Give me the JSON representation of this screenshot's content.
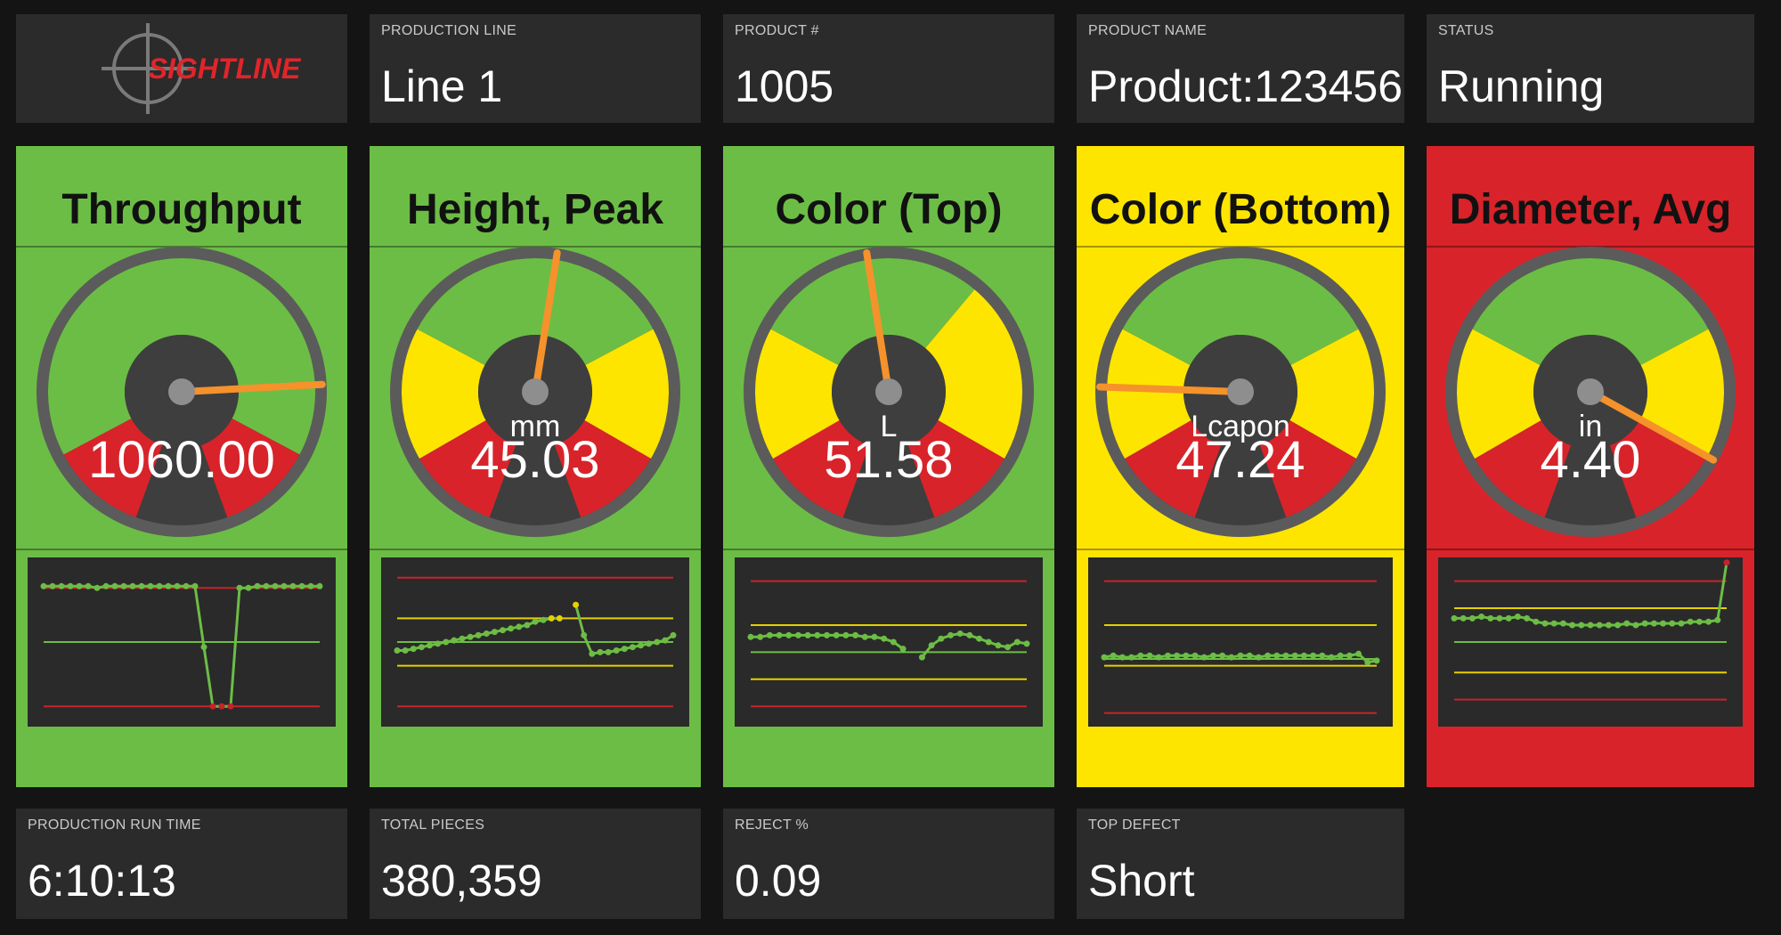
{
  "brand": {
    "logo_text": "SIGHTLINE"
  },
  "header": {
    "production_line": {
      "label": "PRODUCTION LINE",
      "value": "Line 1"
    },
    "product_number": {
      "label": "PRODUCT #",
      "value": "1005"
    },
    "product_name": {
      "label": "PRODUCT NAME",
      "value": "Product:123456"
    },
    "status": {
      "label": "STATUS",
      "value": "Running"
    }
  },
  "colors": {
    "green": "#6cbd45",
    "yellow": "#fde500",
    "red": "#d8232a",
    "needle": "#f5922b",
    "tile": "#2b2b2b",
    "background": "#141414"
  },
  "gauges": [
    {
      "title": "Throughput",
      "unit": "",
      "value": "1060.00",
      "status": "green",
      "zones": [
        [
          "red",
          200,
          242
        ],
        [
          "green",
          242,
          478
        ],
        [
          "red",
          478,
          520
        ]
      ],
      "needle_angle": 447,
      "trend": {
        "lines": [
          [
            "red",
            0.18
          ],
          [
            "green",
            0.5
          ],
          [
            "red",
            0.88
          ]
        ],
        "points": [
          0.17,
          0.17,
          0.17,
          0.17,
          0.17,
          0.17,
          0.18,
          0.17,
          0.17,
          0.17,
          0.17,
          0.17,
          0.17,
          0.17,
          0.17,
          0.17,
          0.17,
          0.17,
          0.53,
          0.88,
          0.88,
          0.88,
          0.18,
          0.18,
          0.17,
          0.17,
          0.17,
          0.17,
          0.17,
          0.17,
          0.17,
          0.17
        ],
        "flags": {
          "18": "green",
          "19": "red",
          "20": "red",
          "21": "red"
        }
      }
    },
    {
      "title": "Height, Peak",
      "unit": "mm",
      "value": "45.03",
      "status": "green",
      "zones": [
        [
          "red",
          200,
          240
        ],
        [
          "yellow",
          240,
          298
        ],
        [
          "green",
          298,
          422
        ],
        [
          "yellow",
          422,
          480
        ],
        [
          "red",
          480,
          520
        ]
      ],
      "needle_angle": 369,
      "trend": {
        "lines": [
          [
            "red",
            0.12
          ],
          [
            "yellow",
            0.36
          ],
          [
            "green",
            0.5
          ],
          [
            "yellow",
            0.64
          ],
          [
            "red",
            0.88
          ]
        ],
        "points": [
          0.55,
          0.55,
          0.54,
          0.53,
          0.52,
          0.51,
          0.5,
          0.49,
          0.48,
          0.47,
          0.46,
          0.45,
          0.44,
          0.43,
          0.42,
          0.41,
          0.4,
          0.38,
          0.37,
          0.36,
          0.36,
          null,
          0.28,
          0.46,
          0.57,
          0.56,
          0.56,
          0.55,
          0.54,
          0.53,
          0.52,
          0.51,
          0.5,
          0.49,
          0.46
        ],
        "flags": {
          "19": "yellow",
          "20": "yellow",
          "22": "yellow"
        }
      }
    },
    {
      "title": "Color (Top)",
      "unit": "L",
      "value": "51.58",
      "status": "green",
      "zones": [
        [
          "red",
          200,
          240
        ],
        [
          "yellow",
          240,
          298
        ],
        [
          "green",
          298,
          400
        ],
        [
          "yellow",
          400,
          480
        ],
        [
          "red",
          480,
          520
        ]
      ],
      "needle_angle": 351,
      "trend": {
        "lines": [
          [
            "red",
            0.14
          ],
          [
            "yellow",
            0.4
          ],
          [
            "green",
            0.56
          ],
          [
            "yellow",
            0.72
          ],
          [
            "red",
            0.88
          ]
        ],
        "points": [
          0.47,
          0.47,
          0.46,
          0.46,
          0.46,
          0.46,
          0.46,
          0.46,
          0.46,
          0.46,
          0.46,
          0.46,
          0.47,
          0.47,
          0.48,
          0.5,
          0.54,
          null,
          0.59,
          0.52,
          0.48,
          0.46,
          0.45,
          0.46,
          0.48,
          0.5,
          0.52,
          0.53,
          0.5,
          0.51
        ],
        "flags": {}
      }
    },
    {
      "title": "Color (Bottom)",
      "unit": "Lcapon",
      "value": "47.24",
      "status": "yellow",
      "zones": [
        [
          "red",
          200,
          240
        ],
        [
          "yellow",
          240,
          298
        ],
        [
          "green",
          298,
          422
        ],
        [
          "yellow",
          422,
          480
        ],
        [
          "red",
          480,
          520
        ]
      ],
      "needle_angle": 272,
      "trend": {
        "lines": [
          [
            "red",
            0.14
          ],
          [
            "yellow",
            0.4
          ],
          [
            "green",
            0.6
          ],
          [
            "yellow",
            0.64
          ],
          [
            "red",
            0.92
          ]
        ],
        "points": [
          0.59,
          0.58,
          0.59,
          0.59,
          0.58,
          0.58,
          0.59,
          0.58,
          0.58,
          0.58,
          0.58,
          0.59,
          0.58,
          0.58,
          0.59,
          0.58,
          0.58,
          0.59,
          0.58,
          0.58,
          0.58,
          0.58,
          0.58,
          0.58,
          0.58,
          0.59,
          0.58,
          0.58,
          0.57,
          0.62,
          0.61
        ],
        "flags": {}
      }
    },
    {
      "title": "Diameter, Avg",
      "unit": "in",
      "value": "4.40",
      "status": "red",
      "zones": [
        [
          "red",
          200,
          240
        ],
        [
          "yellow",
          240,
          298
        ],
        [
          "green",
          298,
          422
        ],
        [
          "yellow",
          422,
          480
        ],
        [
          "red",
          480,
          520
        ]
      ],
      "needle_angle": 479,
      "trend": {
        "lines": [
          [
            "red",
            0.14
          ],
          [
            "yellow",
            0.3
          ],
          [
            "green",
            0.5
          ],
          [
            "yellow",
            0.68
          ],
          [
            "red",
            0.84
          ]
        ],
        "points": [
          0.36,
          0.36,
          0.36,
          0.35,
          0.36,
          0.36,
          0.36,
          0.35,
          0.36,
          0.38,
          0.39,
          0.39,
          0.39,
          0.4,
          0.4,
          0.4,
          0.4,
          0.4,
          0.4,
          0.39,
          0.4,
          0.39,
          0.39,
          0.39,
          0.39,
          0.39,
          0.38,
          0.38,
          0.38,
          0.37,
          0.03
        ],
        "flags": {
          "30": "red"
        }
      }
    }
  ],
  "footer": {
    "run_time": {
      "label": "PRODUCTION RUN TIME",
      "value": "6:10:13"
    },
    "total_pieces": {
      "label": "TOTAL PIECES",
      "value": "380,359"
    },
    "reject_pct": {
      "label": "REJECT %",
      "value": "0.09"
    },
    "top_defect": {
      "label": "TOP DEFECT",
      "value": "Short"
    }
  }
}
